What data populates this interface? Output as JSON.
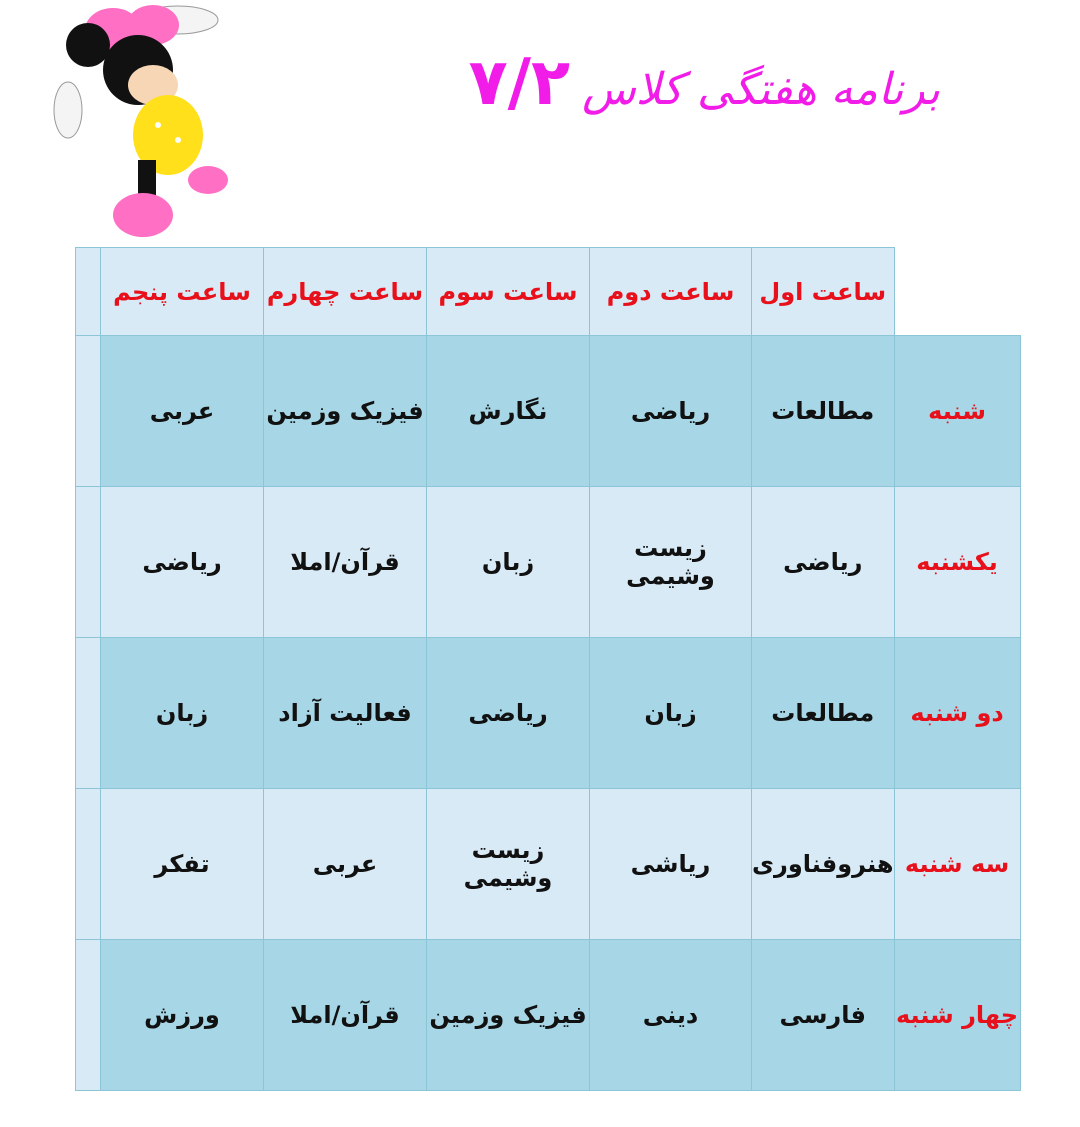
{
  "title": {
    "text": "برنامه هفتگی کلاس",
    "class_number": "۷/۲",
    "color": "#f21ce8"
  },
  "mascot": {
    "icon": "minnie-mouse-illustration"
  },
  "schedule": {
    "headers": [
      "ساعت اول",
      "ساعت دوم",
      "ساعت سوم",
      "ساعت چهارم",
      "ساعت پنجم"
    ],
    "rows": [
      {
        "day": "شنبه",
        "classes": [
          "مطالعات",
          "ریاضی",
          "نگارش",
          "فیزیک وزمین",
          "عربی"
        ]
      },
      {
        "day": "یکشنبه",
        "classes": [
          "ریاضی",
          "زیست وشیمی",
          "زبان",
          "قرآن/املا",
          "ریاضی"
        ]
      },
      {
        "day": "دو شنبه",
        "classes": [
          "مطالعات",
          "زبان",
          "ریاضی",
          "فعالیت آزاد",
          "زبان"
        ]
      },
      {
        "day": "سه شنبه",
        "classes": [
          "هنروفناوری",
          "ریاشی",
          "زیست وشیمی",
          "عربی",
          "تفکر"
        ]
      },
      {
        "day": "چهار شنبه",
        "classes": [
          "فارسی",
          "دینی",
          "فیزیک وزمین",
          "قرآن/املا",
          "ورزش"
        ]
      }
    ],
    "colors": {
      "header_text": "#e8101a",
      "dark_row": "#a7d7e6",
      "light_row": "#d7eaf6"
    }
  }
}
